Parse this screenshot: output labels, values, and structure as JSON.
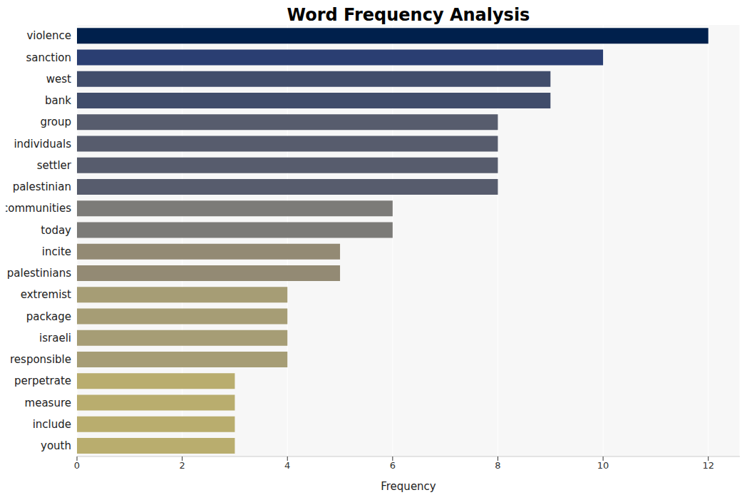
{
  "chart_data": {
    "type": "bar",
    "title": "Word Frequency Analysis",
    "x_label": "Frequency",
    "orientation": "horizontal",
    "categories": [
      "violence",
      "sanction",
      "west",
      "bank",
      "group",
      "individuals",
      "settler",
      "palestinian",
      "communities",
      "today",
      "incite",
      "palestinians",
      "extremist",
      "package",
      "israeli",
      "responsible",
      "perpetrate",
      "measure",
      "include",
      "youth"
    ],
    "values": [
      12,
      10,
      9,
      9,
      8,
      8,
      8,
      8,
      6,
      6,
      5,
      5,
      4,
      4,
      4,
      4,
      3,
      3,
      3,
      3
    ],
    "colors": [
      "#00204c",
      "#2a3e72",
      "#414d6b",
      "#414d6b",
      "#575c6d",
      "#575c6d",
      "#575c6d",
      "#575c6d",
      "#7c7b78",
      "#7c7b78",
      "#938a74",
      "#938a74",
      "#a69d75",
      "#a69d75",
      "#a69d75",
      "#a69d75",
      "#b9ad6e",
      "#b9ad6e",
      "#b9ad6e",
      "#b9ad6e"
    ],
    "xlim": [
      0,
      12.6
    ],
    "xticks": [
      0,
      2,
      4,
      6,
      8,
      10,
      12
    ],
    "grid": true
  }
}
